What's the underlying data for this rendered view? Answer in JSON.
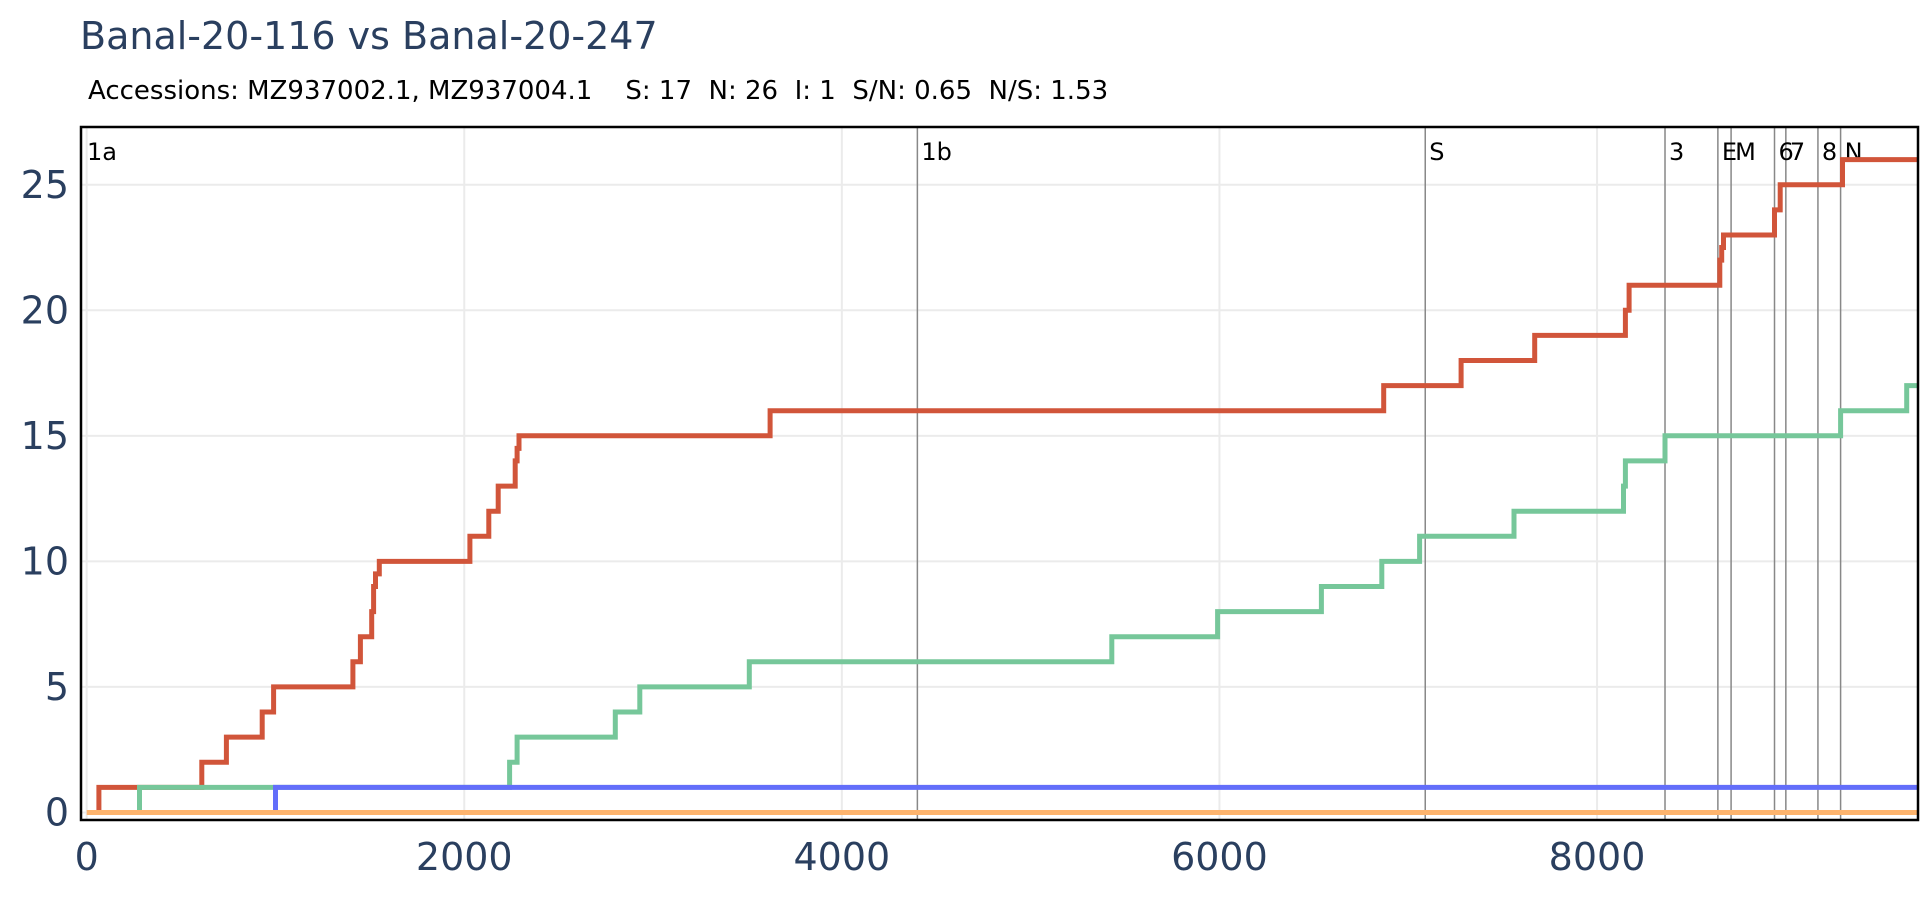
{
  "chart_data": {
    "type": "line",
    "title": "Banal-20-116 vs Banal-20-247",
    "subtitle": "Accessions: MZ937002.1, MZ937004.1    S: 17  N: 26  I: 1  S/N: 0.65  N/S: 1.53",
    "xlabel": "",
    "ylabel": "",
    "xlim": [
      -30,
      9700
    ],
    "ylim": [
      -0.3,
      27.3
    ],
    "x_ticks": [
      0,
      2000,
      4000,
      6000,
      8000
    ],
    "y_ticks": [
      0,
      5,
      10,
      15,
      20,
      25
    ],
    "grid": true,
    "legend": "none",
    "region_boundaries": [
      4400,
      7090,
      8360,
      8640,
      8710,
      8940,
      9000,
      9170,
      9290
    ],
    "region_labels": [
      {
        "label": "1a",
        "x": 0
      },
      {
        "label": "1b",
        "x": 4400
      },
      {
        "label": "S",
        "x": 7090
      },
      {
        "label": "3",
        "x": 8360
      },
      {
        "label": "E",
        "x": 8640
      },
      {
        "label": "M",
        "x": 8710
      },
      {
        "label": "6",
        "x": 8940
      },
      {
        "label": "7",
        "x": 9000
      },
      {
        "label": "8",
        "x": 9170
      },
      {
        "label": "N",
        "x": 9290
      }
    ],
    "series": [
      {
        "color": "#d1553a",
        "x": [
          55,
          65,
          260,
          610,
          740,
          930,
          990,
          1410,
          1450,
          1510,
          1520,
          1530,
          1550,
          2030,
          2130,
          2180,
          2270,
          2280,
          2290,
          3620,
          6870,
          7280,
          7670,
          8150,
          8170,
          8650,
          8660,
          8670,
          8940,
          8970,
          9100,
          9300,
          9700
        ],
        "y": [
          0,
          1,
          1,
          2,
          3,
          4,
          5,
          6,
          7,
          8,
          9,
          9.5,
          10,
          11,
          12,
          13,
          14,
          14.5,
          15,
          16,
          17,
          18,
          19,
          20,
          21,
          22,
          22.5,
          23,
          24,
          25,
          25,
          26,
          26
        ]
      },
      {
        "color": "#76c79a",
        "x": [
          270,
          280,
          2230,
          2240,
          2280,
          2800,
          2930,
          3510,
          5430,
          5990,
          6540,
          6860,
          7060,
          7560,
          8140,
          8150,
          8360,
          9290,
          9640,
          9700
        ],
        "y": [
          0,
          1,
          1,
          2,
          3,
          4,
          5,
          6,
          7,
          8,
          9,
          10,
          11,
          12,
          13,
          14,
          15,
          16,
          17,
          17
        ]
      },
      {
        "color": "#636efa",
        "x": [
          990,
          1000,
          2240,
          9700
        ],
        "y": [
          0,
          1,
          1,
          1
        ]
      },
      {
        "color": "#fdb46e",
        "x": [
          0,
          9700
        ],
        "y": [
          0,
          0
        ]
      }
    ]
  }
}
